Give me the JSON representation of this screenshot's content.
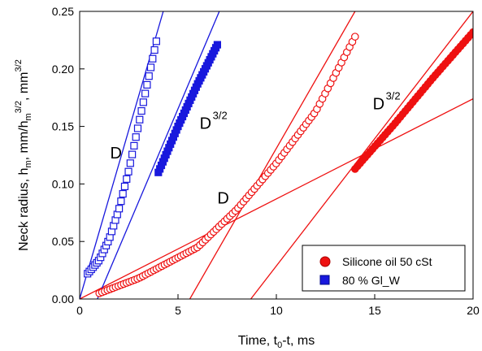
{
  "chart_data": {
    "type": "scatter",
    "title": "",
    "xlabel": {
      "main": "Time, t",
      "sub": "0",
      "rest": "-t, ms"
    },
    "ylabel": {
      "p1": "Neck radius, h",
      "sub1": "m",
      "p2": ", mm/h",
      "sub2": "m",
      "sup2": "3/2",
      "p3": ", mm",
      "sup3": "3/2"
    },
    "xlim": [
      0,
      20
    ],
    "ylim": [
      0,
      0.25
    ],
    "xticks": [
      "0",
      "5",
      "10",
      "15",
      "20"
    ],
    "yticks": [
      "0.00",
      "0.05",
      "0.10",
      "0.15",
      "0.20",
      "0.25"
    ],
    "grid": false,
    "legend_position": "bottom-right",
    "legend": [
      {
        "label": "Silicone oil 50 cSt",
        "marker": "circle",
        "color": "#ee1111"
      },
      {
        "label": "80 % Gl_W",
        "marker": "square",
        "color": "#1818dd"
      }
    ],
    "annotations": [
      {
        "text": "D",
        "sup": "",
        "x": 1.55,
        "y": 0.122
      },
      {
        "text": "D",
        "sup": "3/2",
        "x": 6.1,
        "y": 0.148
      },
      {
        "text": "D",
        "sup": "",
        "x": 7.0,
        "y": 0.083
      },
      {
        "text": "D",
        "sup": "3/2",
        "x": 14.9,
        "y": 0.165
      }
    ],
    "series": [
      {
        "name": "Silicone oil 50 cSt",
        "part": "D",
        "marker": "circle-open",
        "color": "#ee1111",
        "x_start": 1.0,
        "x_end": 14.0,
        "count": 95,
        "y_at": [
          [
            1.0,
            0.005
          ],
          [
            3.0,
            0.018
          ],
          [
            6.0,
            0.045
          ],
          [
            8.0,
            0.078
          ],
          [
            10.0,
            0.118
          ],
          [
            12.0,
            0.163
          ],
          [
            14.0,
            0.228
          ]
        ]
      },
      {
        "name": "Silicone oil 50 cSt",
        "part": "D^3/2",
        "marker": "circle-filled",
        "color": "#ee1111",
        "x_start": 14.0,
        "x_end": 20.0,
        "count": 48,
        "y_at": [
          [
            14.0,
            0.113
          ],
          [
            16.0,
            0.152
          ],
          [
            18.0,
            0.193
          ],
          [
            20.0,
            0.232
          ]
        ]
      },
      {
        "name": "80 % Gl_W",
        "part": "D",
        "marker": "square-open",
        "color": "#1818dd",
        "x_start": 0.4,
        "x_end": 3.9,
        "count": 38,
        "y_at": [
          [
            0.4,
            0.022
          ],
          [
            1.0,
            0.034
          ],
          [
            1.5,
            0.052
          ],
          [
            2.0,
            0.078
          ],
          [
            2.5,
            0.112
          ],
          [
            3.0,
            0.152
          ],
          [
            3.5,
            0.192
          ],
          [
            3.9,
            0.224
          ]
        ]
      },
      {
        "name": "80 % Gl_W",
        "part": "D^3/2",
        "marker": "square-filled",
        "color": "#1818dd",
        "x_start": 4.0,
        "x_end": 7.0,
        "count": 40,
        "y_at": [
          [
            4.0,
            0.11
          ],
          [
            5.0,
            0.15
          ],
          [
            6.0,
            0.187
          ],
          [
            7.0,
            0.221
          ]
        ]
      }
    ],
    "fit_lines": [
      {
        "color": "#ee1111",
        "x1": 0.0,
        "y1": 0.0,
        "x2": 20.0,
        "y2": 0.174
      },
      {
        "color": "#ee1111",
        "x1": 5.6,
        "y1": 0.0,
        "x2": 14.0,
        "y2": 0.25
      },
      {
        "color": "#ee1111",
        "x1": 8.7,
        "y1": 0.0,
        "x2": 20.0,
        "y2": 0.25
      },
      {
        "color": "#1818dd",
        "x1": 0.0,
        "y1": 0.0,
        "x2": 4.25,
        "y2": 0.25
      },
      {
        "color": "#1818dd",
        "x1": 0.9,
        "y1": 0.0,
        "x2": 7.1,
        "y2": 0.25
      }
    ]
  }
}
